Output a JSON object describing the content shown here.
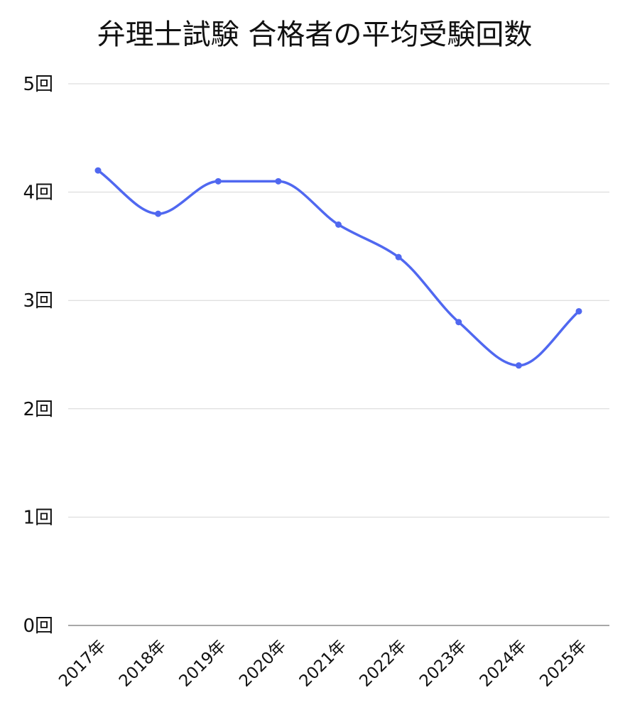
{
  "chart_data": {
    "type": "line",
    "title": "弁理士試験 合格者の平均受験回数",
    "xlabel": "",
    "ylabel": "",
    "categories": [
      "2017年",
      "2018年",
      "2019年",
      "2020年",
      "2021年",
      "2022年",
      "2023年",
      "2024年",
      "2025年"
    ],
    "series": [
      {
        "values": [
          4.2,
          3.8,
          4.1,
          4.1,
          3.7,
          3.4,
          2.8,
          2.4,
          2.9
        ],
        "color": "#5068F0"
      }
    ],
    "ylim": [
      0,
      5
    ],
    "y_ticks": [
      {
        "value": 0,
        "label": "0回"
      },
      {
        "value": 1,
        "label": "1回"
      },
      {
        "value": 2,
        "label": "2回"
      },
      {
        "value": 3,
        "label": "3回"
      },
      {
        "value": 4,
        "label": "4回"
      },
      {
        "value": 5,
        "label": "5回"
      }
    ],
    "grid": true,
    "legend": "none",
    "smooth": true
  }
}
